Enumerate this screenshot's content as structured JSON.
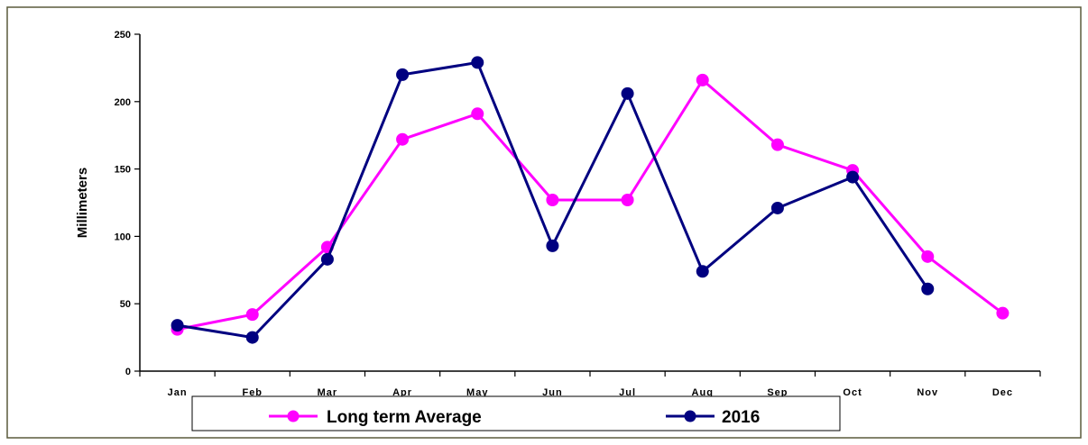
{
  "chart_data": {
    "type": "line",
    "title": "",
    "xlabel": "",
    "ylabel": "Millimeters",
    "ylim": [
      0,
      250
    ],
    "yticks": [
      0,
      50,
      100,
      150,
      200,
      250
    ],
    "categories": [
      "Jan",
      "Feb",
      "Mar",
      "Apr",
      "May",
      "Jun",
      "Jul",
      "Aug",
      "Sep",
      "Oct",
      "Nov",
      "Dec"
    ],
    "grid": false,
    "legend_position": "bottom",
    "series": [
      {
        "name": "Long term Average",
        "color": "#ff00ff",
        "values": [
          31,
          42,
          92,
          172,
          191,
          127,
          127,
          216,
          168,
          149,
          85,
          43
        ]
      },
      {
        "name": "2016",
        "color": "#000080",
        "values": [
          34,
          25,
          83,
          220,
          229,
          93,
          206,
          74,
          121,
          144,
          61,
          null
        ]
      }
    ]
  },
  "colors": {
    "frame_border": "#5a5a3c",
    "axis": "#000000",
    "background": "#ffffff"
  }
}
